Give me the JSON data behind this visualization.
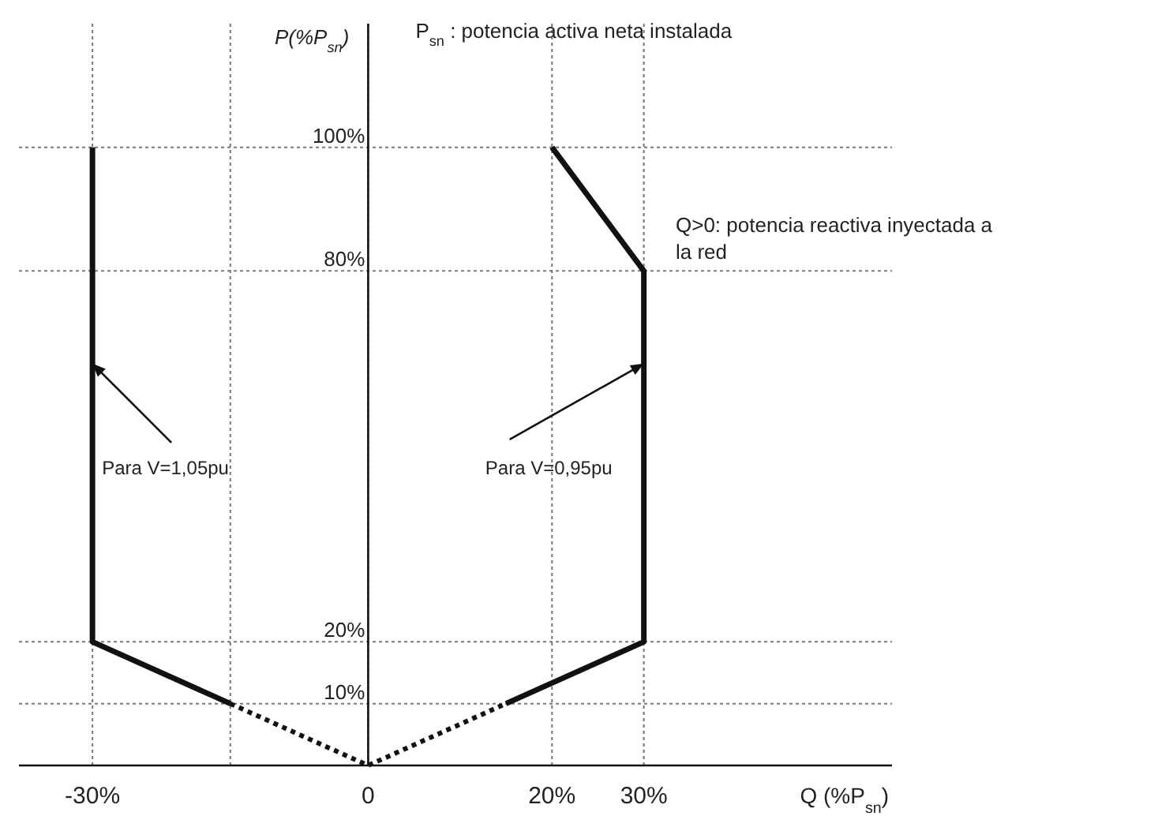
{
  "chart_data": {
    "type": "line",
    "xlabel": "Q (%P$_{sn}$)",
    "ylabel": "P(%P$_{sn}$)",
    "xlim": [
      -38,
      57
    ],
    "ylim": [
      0,
      120
    ],
    "xticks": [
      {
        "value": -30,
        "label": "-30%"
      },
      {
        "value": -15,
        "label": null
      },
      {
        "value": 0,
        "label": "0"
      },
      {
        "value": 20,
        "label": "20%"
      },
      {
        "value": 30,
        "label": "30%"
      }
    ],
    "yticks": [
      {
        "value": 10,
        "label": "10%"
      },
      {
        "value": 20,
        "label": "20%"
      },
      {
        "value": 80,
        "label": "80%"
      },
      {
        "value": 100,
        "label": "100%"
      }
    ],
    "grid": true,
    "marker": "none",
    "series": [
      {
        "color": "#111111",
        "line_style": "solid",
        "x": [
          -15,
          -30,
          -30
        ],
        "values": [
          10,
          20,
          100
        ]
      },
      {
        "color": "#111111",
        "line_style": "solid",
        "x": [
          15,
          30,
          30,
          20
        ],
        "values": [
          10,
          20,
          80,
          100
        ]
      },
      {
        "color": "#111111",
        "line_style": "dotted",
        "x": [
          -15,
          0,
          15
        ],
        "values": [
          10,
          0,
          10
        ]
      }
    ],
    "annotations": [
      "P$_{sn}$ : potencia activa neta instalada",
      "Q>0: potencia reactiva inyectada a la red",
      {
        "text": "Para V=1,05pu",
        "x": -30,
        "y": 65
      },
      {
        "text": "Para V=0,95pu",
        "x": 30,
        "y": 65
      }
    ]
  }
}
